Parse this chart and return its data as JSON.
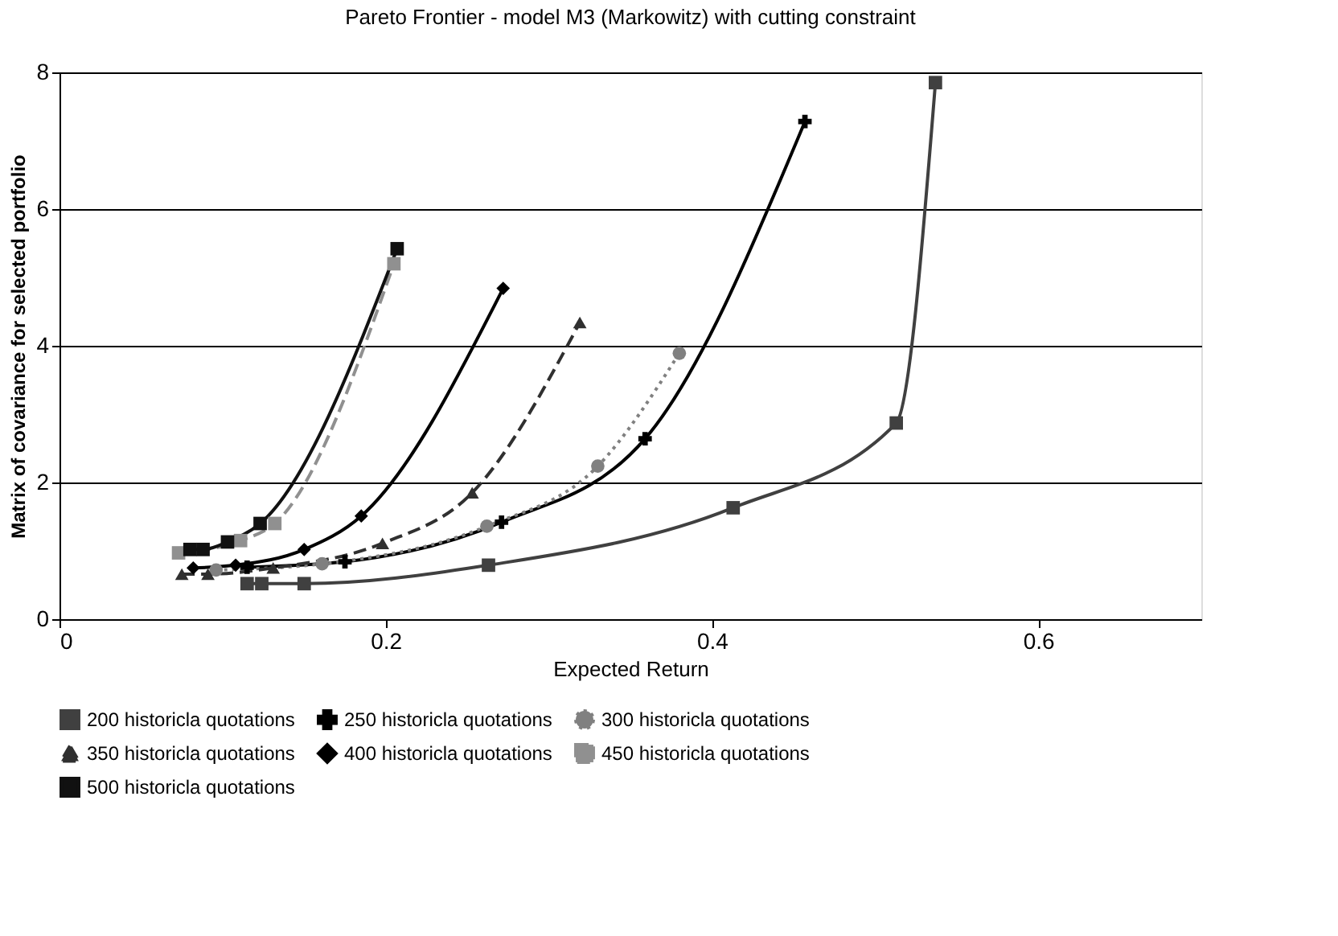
{
  "chart_data": {
    "type": "line",
    "title": "Pareto Frontier - model M3 (Markowitz) with cutting constraint",
    "xlabel": "Expected Return",
    "ylabel": "Matrix of covariance for selected portfolio",
    "xlim": [
      0,
      0.7
    ],
    "xticks": [
      0,
      0.2,
      0.4,
      0.6
    ],
    "ylim": [
      0,
      8
    ],
    "yticks": [
      0,
      2,
      4,
      6,
      8
    ],
    "grid": "y",
    "legend": "bottom",
    "series": [
      {
        "name": "200 historicla quotations",
        "color": "#404040",
        "marker": "square",
        "line_style": "solid",
        "x": [
          0.115,
          0.124,
          0.15,
          0.263,
          0.413,
          0.513,
          0.537
        ],
        "values": [
          0.52,
          0.52,
          0.52,
          0.79,
          1.63,
          2.87,
          7.85
        ]
      },
      {
        "name": "250 historicla quotations",
        "color": "#000000",
        "marker": "cross",
        "line_style": "solid",
        "x": [
          0.115,
          0.175,
          0.271,
          0.359,
          0.457
        ],
        "values": [
          0.76,
          0.84,
          1.42,
          2.64,
          7.28
        ]
      },
      {
        "name": "300 historicla quotations",
        "color": "#808080",
        "marker": "circle",
        "line_style": "dotted",
        "x": [
          0.096,
          0.161,
          0.262,
          0.33,
          0.38
        ],
        "values": [
          0.72,
          0.81,
          1.36,
          2.24,
          3.89
        ]
      },
      {
        "name": "350 historicla quotations",
        "color": "#303030",
        "marker": "triangle",
        "line_style": "dashed",
        "x": [
          0.075,
          0.091,
          0.131,
          0.198,
          0.253,
          0.319
        ],
        "values": [
          0.66,
          0.66,
          0.75,
          1.11,
          1.85,
          4.34
        ]
      },
      {
        "name": "400 historicla quotations",
        "color": "#000000",
        "marker": "diamond",
        "line_style": "solid",
        "x": [
          0.082,
          0.108,
          0.15,
          0.185,
          0.272
        ],
        "values": [
          0.75,
          0.79,
          1.02,
          1.51,
          4.84
        ]
      },
      {
        "name": "450 historicla quotations",
        "color": "#909090",
        "marker": "square",
        "line_style": "dashed",
        "x": [
          0.073,
          0.09,
          0.111,
          0.132,
          0.205
        ],
        "values": [
          0.97,
          null,
          1.15,
          1.4,
          5.2
        ]
      },
      {
        "name": "500 historicla quotations",
        "color": "#111111",
        "marker": "square",
        "line_style": "solid",
        "x": [
          0.08,
          0.088,
          0.103,
          0.123,
          0.207
        ],
        "values": [
          1.02,
          1.02,
          1.13,
          1.4,
          5.42
        ]
      }
    ]
  }
}
